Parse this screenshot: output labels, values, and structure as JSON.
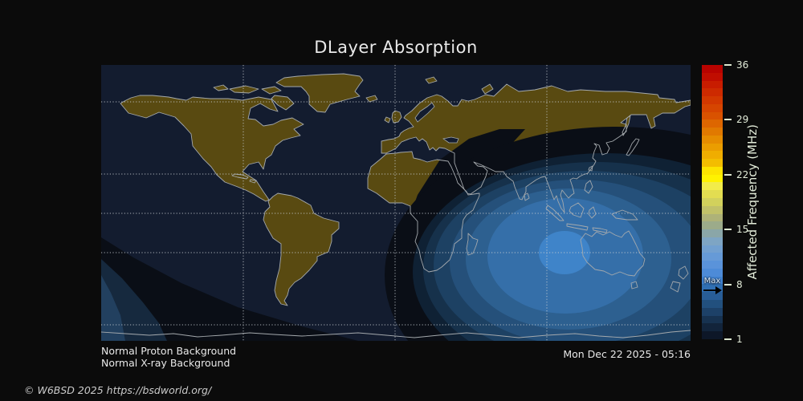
{
  "title": "DLayer Absorption",
  "map": {
    "ocean_color": "#131c2f",
    "land_color": "#594a11",
    "coastline_color": "#a4a9ad",
    "gridline_color": "#c8cdd2",
    "night_shadow_color": "#0a0e16"
  },
  "annotations": {
    "proton": "Normal Proton Background",
    "xray": "Normal X-ray Background",
    "timestamp": "Mon Dec 22 2025 - 05:16"
  },
  "footer": {
    "copyright": "© W6BSD 2025 https://bsdworld.org/"
  },
  "colorbar": {
    "label": "Affected Frequency (MHz)",
    "unit": "MHz",
    "min": 1,
    "max": 36,
    "ticks": [
      36,
      29,
      22,
      15,
      8,
      1
    ],
    "max_marker": {
      "label": "Max",
      "value": 8
    },
    "segments_top_to_bottom": [
      "#b80300",
      "#c00d00",
      "#c81c00",
      "#cd2a00",
      "#d23800",
      "#d64500",
      "#d95200",
      "#dd6600",
      "#e17900",
      "#e68c00",
      "#eb9d00",
      "#f0ad00",
      "#f3bd00",
      "#fde400",
      "#fff200",
      "#f2ec4a",
      "#e3dd51",
      "#d2d15c",
      "#c1c169",
      "#aeb278",
      "#9cab8a",
      "#8aa6a8",
      "#7ea5c4",
      "#72a0d0",
      "#669ad7",
      "#5a93da",
      "#4d8bd8",
      "#4183d2",
      "#306fb3",
      "#285d97",
      "#22507e",
      "#1d4168",
      "#173250",
      "#12243b",
      "#0d1728"
    ]
  },
  "chart_data": {
    "type": "heatmap",
    "title": "DLayer Absorption",
    "projection": "equirectangular world map",
    "colorbar": {
      "label": "Affected Frequency (MHz)",
      "range": [
        1,
        36
      ],
      "ticks": [
        1,
        8,
        15,
        22,
        29,
        36
      ]
    },
    "max_affected_frequency_mhz": 8,
    "timestamp": "Mon Dec 22 2025 - 05:16",
    "conditions": [
      "Normal Proton Background",
      "Normal X-ray Background"
    ],
    "gridlines": {
      "latitudes_deg": [
        66.5,
        23.4,
        0,
        -23.4,
        -66.5
      ],
      "longitude_lines_count": 3
    },
    "absorption_region": {
      "center_lon_deg_approx": 103,
      "center_lat_deg_approx": -24,
      "peak_mhz_approx": 8,
      "contour_levels_mhz": [
        1,
        2,
        3,
        4,
        5,
        6,
        7,
        8
      ],
      "description": "Concentric D-layer absorption contours on the sunlit hemisphere centered over the eastern Indian Ocean / western Australia; night side (Americas, Atlantic, Europe, Siberia) unaffected"
    }
  }
}
